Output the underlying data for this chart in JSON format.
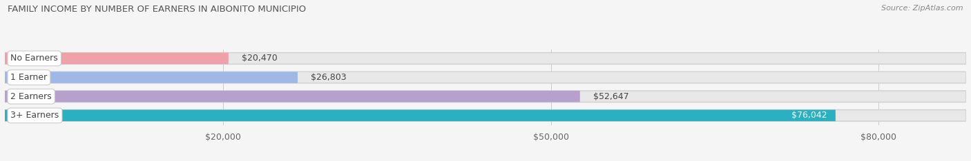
{
  "title": "FAMILY INCOME BY NUMBER OF EARNERS IN AIBONITO MUNICIPIO",
  "source": "Source: ZipAtlas.com",
  "categories": [
    "No Earners",
    "1 Earner",
    "2 Earners",
    "3+ Earners"
  ],
  "values": [
    20470,
    26803,
    52647,
    76042
  ],
  "bar_colors": [
    "#f0a0a8",
    "#a0b8e8",
    "#b8a0cc",
    "#2ab0c0"
  ],
  "label_colors": [
    "#333333",
    "#333333",
    "#333333",
    "#ffffff"
  ],
  "x_ticks": [
    20000,
    50000,
    80000
  ],
  "x_tick_labels": [
    "$20,000",
    "$50,000",
    "$80,000"
  ],
  "xlim": [
    0,
    88000
  ],
  "bar_height": 0.6,
  "background_color": "#f5f5f5",
  "track_color": "#e8e8e8",
  "title_fontsize": 9.5,
  "source_fontsize": 8,
  "label_fontsize": 9,
  "value_fontsize": 9,
  "tick_fontsize": 9
}
